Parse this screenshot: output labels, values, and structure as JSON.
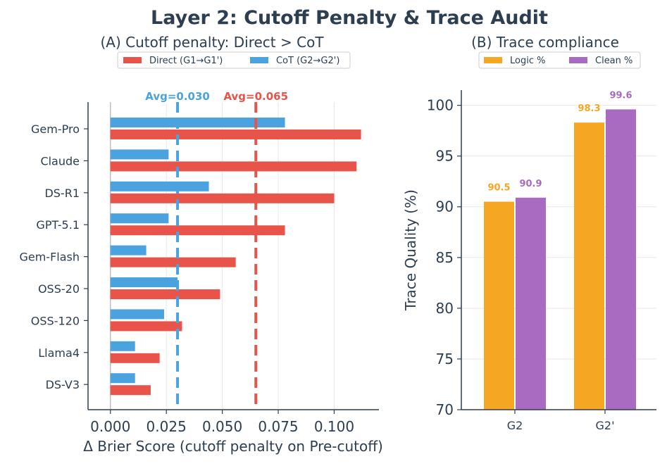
{
  "figure_title": "Layer 2: Cutoff Penalty & Trace Audit",
  "colors": {
    "direct": "#e8544a",
    "cot": "#4aa3df",
    "logic": "#f5a623",
    "clean": "#a96bc1",
    "text": "#2c3e50",
    "grid": "#e8e8e8"
  },
  "chart_data": [
    {
      "type": "bar",
      "orientation": "horizontal",
      "title": "(A) Cutoff penalty: Direct > CoT",
      "xlabel": "Δ Brier Score (cutoff penalty on Pre-cutoff)",
      "ylabel": "",
      "xlim": [
        -0.01,
        0.12
      ],
      "xticks": [
        0.0,
        0.025,
        0.05,
        0.075,
        0.1
      ],
      "xtick_labels": [
        "0.000",
        "0.025",
        "0.050",
        "0.075",
        "0.100"
      ],
      "grid": "vertical",
      "legend_position": "top",
      "categories": [
        "Gem-Pro",
        "Claude",
        "DS-R1",
        "GPT-5.1",
        "Gem-Flash",
        "OSS-20",
        "OSS-120",
        "Llama4",
        "DS-V3"
      ],
      "series": [
        {
          "name": "Direct (G1→G1')",
          "values": [
            0.112,
            0.11,
            0.1,
            0.078,
            0.056,
            0.049,
            0.032,
            0.022,
            0.018
          ]
        },
        {
          "name": "CoT (G2→G2')",
          "values": [
            0.078,
            0.026,
            0.044,
            0.026,
            0.016,
            0.03,
            0.024,
            0.011,
            0.011
          ]
        }
      ],
      "reference_lines": [
        {
          "label": "Avg=0.030",
          "value": 0.03,
          "series": "CoT (G2→G2')"
        },
        {
          "label": "Avg=0.065",
          "value": 0.065,
          "series": "Direct (G1→G1')"
        }
      ]
    },
    {
      "type": "bar",
      "orientation": "vertical",
      "title": "(B) Trace compliance",
      "xlabel": "",
      "ylabel": "Trace Quality (%)",
      "ylim": [
        70,
        101.5
      ],
      "yticks": [
        70,
        75,
        80,
        85,
        90,
        95,
        100
      ],
      "grid": "horizontal",
      "legend_position": "top",
      "categories": [
        "G2",
        "G2'"
      ],
      "series": [
        {
          "name": "Logic %",
          "values": [
            90.5,
            98.3
          ],
          "labels": [
            "90.5",
            "98.3"
          ]
        },
        {
          "name": "Clean %",
          "values": [
            90.9,
            99.6
          ],
          "labels": [
            "90.9",
            "99.6"
          ]
        }
      ]
    }
  ]
}
